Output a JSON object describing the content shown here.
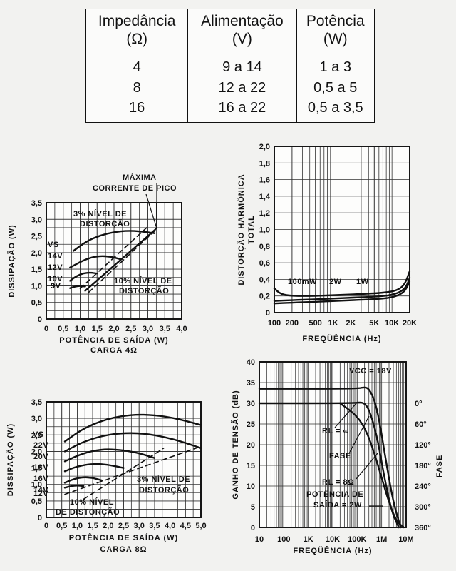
{
  "table": {
    "headers": [
      {
        "line1": "Impedância",
        "line2": "(Ω)"
      },
      {
        "line1": "Alimentação",
        "line2": "(V)"
      },
      {
        "line1": "Potência",
        "line2": "(W)"
      }
    ],
    "rows": [
      [
        "4",
        "9 a 14",
        "1 a 3"
      ],
      [
        "8",
        "12 a 22",
        "0,5 a 5"
      ],
      [
        "16",
        "16 a 22",
        "0,5 a 3,5"
      ]
    ]
  },
  "chart_data": [
    {
      "id": "chart-1",
      "type": "line",
      "ylabel": "DISSIPAÇÃO (W)",
      "xlabel": "POTÊNCIA DE SAÍDA (W)",
      "subtitle": "CARGA 4Ω",
      "xlim": [
        0,
        4.0
      ],
      "ylim": [
        0,
        3.5
      ],
      "xticks": [
        0,
        0.5,
        1,
        1.5,
        2,
        2.5,
        3,
        3.5,
        4
      ],
      "xtick_labels": [
        "0",
        "0,5",
        "1,0",
        "1,5",
        "2,0",
        "2,5",
        "3,0",
        "3,5",
        "4,0"
      ],
      "yticks": [
        0,
        0.5,
        1,
        1.5,
        2,
        2.5,
        3,
        3.5
      ],
      "ytick_labels": [
        "0",
        "0,5",
        "1,0",
        "1,5",
        "2,0",
        "2,5",
        "3,0",
        "3,5"
      ],
      "grid_x_minor": 0.25,
      "grid_y_minor": 0.25,
      "series": [
        {
          "name": "14V",
          "style": "solid",
          "x": [
            0.8,
            1.2,
            1.6,
            2.0,
            2.4,
            2.8,
            3.2
          ],
          "y": [
            2.05,
            2.35,
            2.52,
            2.62,
            2.66,
            2.64,
            2.58
          ]
        },
        {
          "name": "12V",
          "style": "solid",
          "x": [
            0.7,
            1.0,
            1.3,
            1.6,
            1.9,
            2.2
          ],
          "y": [
            1.55,
            1.72,
            1.85,
            1.9,
            1.88,
            1.8
          ]
        },
        {
          "name": "10V",
          "style": "solid",
          "x": [
            0.7,
            0.9,
            1.1,
            1.3,
            1.5
          ],
          "y": [
            1.15,
            1.3,
            1.38,
            1.4,
            1.37
          ]
        },
        {
          "name": "9V",
          "style": "solid",
          "x": [
            0.7,
            0.85,
            1.0,
            1.15
          ],
          "y": [
            0.93,
            0.98,
            1.0,
            0.98
          ]
        },
        {
          "name": "3% nível de distorção",
          "style": "dashed",
          "x": [
            1.0,
            3.0
          ],
          "y": [
            0.92,
            2.78
          ]
        },
        {
          "name": "10% nível de distorção",
          "style": "dashed",
          "x": [
            1.25,
            3.25
          ],
          "y": [
            0.8,
            2.7
          ]
        },
        {
          "name": "máxima corrente de pico",
          "style": "solid",
          "x": [
            1.15,
            3.25
          ],
          "y": [
            0.85,
            2.72
          ]
        }
      ],
      "annotations": [
        "MÁXIMA",
        "CORRENTE DE PICO",
        "3% NÍVEL DE",
        "DISTORÇÃO",
        "10% NÍVEL DE",
        "DISTORÇÃO",
        "VS",
        "14V",
        "12V",
        "10V",
        "9V"
      ]
    },
    {
      "id": "chart-2",
      "type": "line",
      "xscale": "log",
      "ylabel": "DISTORÇÃO HARMÔNICA TOTAL",
      "xlabel": "FREQÜÊNCIA (Hz)",
      "xlim": [
        100,
        20000
      ],
      "ylim": [
        0,
        2.0
      ],
      "xticks": [
        100,
        200,
        500,
        1000,
        2000,
        5000,
        10000,
        20000
      ],
      "xtick_labels": [
        "100",
        "200",
        "500",
        "1K",
        "2K",
        "5K",
        "10K",
        "20K"
      ],
      "yticks": [
        0,
        0.2,
        0.4,
        0.6,
        0.8,
        1.0,
        1.2,
        1.4,
        1.6,
        1.8,
        2.0
      ],
      "ytick_labels": [
        "0",
        "0,2",
        "0,4",
        "0,6",
        "0,8",
        "1,0",
        "1,2",
        "1,4",
        "1,6",
        "1,8",
        "2,0"
      ],
      "series": [
        {
          "name": "100mW",
          "style": "solid",
          "x": [
            100,
            130,
            200,
            500,
            1000,
            5000,
            10000,
            14000,
            17000,
            20000
          ],
          "y": [
            0.29,
            0.22,
            0.2,
            0.2,
            0.21,
            0.23,
            0.25,
            0.29,
            0.36,
            0.5
          ]
        },
        {
          "name": "2W",
          "style": "solid",
          "x": [
            100,
            200,
            500,
            1000,
            5000,
            10000,
            15000,
            18000,
            20000
          ],
          "y": [
            0.11,
            0.12,
            0.13,
            0.14,
            0.16,
            0.18,
            0.23,
            0.3,
            0.38
          ]
        },
        {
          "name": "1W",
          "style": "solid",
          "x": [
            100,
            200,
            500,
            1000,
            5000,
            10000,
            15000,
            18000,
            20000
          ],
          "y": [
            0.14,
            0.15,
            0.16,
            0.17,
            0.19,
            0.21,
            0.26,
            0.33,
            0.42
          ]
        }
      ],
      "annotations": [
        "100mW",
        "2W",
        "1W"
      ]
    },
    {
      "id": "chart-3",
      "type": "line",
      "ylabel": "DISSIPAÇÃO (W)",
      "xlabel": "POTÊNCIA DE SAÍDA (W)",
      "subtitle": "CARGA 8Ω",
      "xlim": [
        0,
        5.0
      ],
      "ylim": [
        0,
        3.5
      ],
      "xticks": [
        0,
        0.5,
        1,
        1.5,
        2,
        2.5,
        3,
        3.5,
        4,
        4.5,
        5
      ],
      "xtick_labels": [
        "0",
        "0,5",
        "1,0",
        "1,5",
        "2,0",
        "2,5",
        "3,0",
        "3,5",
        "4,0",
        "4,5",
        "5,0"
      ],
      "yticks": [
        0,
        0.5,
        1,
        1.5,
        2,
        2.5,
        3,
        3.5
      ],
      "ytick_labels": [
        "0",
        "0,5",
        "1,0",
        "1,5",
        "2,0",
        "2,5",
        "3,0",
        "3,5"
      ],
      "grid_x_minor": 0.25,
      "grid_y_minor": 0.25,
      "series": [
        {
          "name": "22V",
          "style": "solid",
          "x": [
            0.6,
            1.2,
            2.0,
            2.8,
            3.5,
            4.2,
            5.0
          ],
          "y": [
            2.3,
            2.7,
            3.0,
            3.12,
            3.1,
            3.0,
            2.8
          ]
        },
        {
          "name": "20V",
          "style": "solid",
          "x": [
            0.6,
            1.2,
            2.0,
            2.8,
            3.5,
            4.2,
            5.0
          ],
          "y": [
            2.0,
            2.3,
            2.52,
            2.57,
            2.5,
            2.35,
            2.1
          ]
        },
        {
          "name": "18V",
          "style": "solid",
          "x": [
            0.6,
            1.2,
            1.8,
            2.4,
            3.0,
            3.5
          ],
          "y": [
            1.7,
            1.95,
            2.07,
            2.05,
            1.95,
            1.8
          ]
        },
        {
          "name": "16V",
          "style": "solid",
          "x": [
            0.6,
            1.0,
            1.5,
            2.0,
            2.5
          ],
          "y": [
            1.4,
            1.55,
            1.63,
            1.6,
            1.5
          ]
        },
        {
          "name": "14V",
          "style": "solid",
          "x": [
            0.6,
            0.9,
            1.2,
            1.5,
            1.8
          ],
          "y": [
            1.05,
            1.17,
            1.22,
            1.2,
            1.12
          ]
        },
        {
          "name": "12V",
          "style": "solid",
          "x": [
            0.6,
            0.8,
            1.0,
            1.2
          ],
          "y": [
            0.9,
            0.95,
            0.97,
            0.95
          ]
        },
        {
          "name": "3% nível de distorção",
          "style": "dashed",
          "x": [
            0.6,
            5.0
          ],
          "y": [
            0.7,
            2.15
          ]
        },
        {
          "name": "10% nível de distorção",
          "style": "dashed",
          "x": [
            1.2,
            3.8
          ],
          "y": [
            0.55,
            2.1
          ]
        }
      ],
      "annotations": [
        "VS",
        "22V",
        "20V",
        "18V",
        "16V",
        "14V",
        "12V",
        "3% NÍVEL DE",
        "DISTORÇÃO",
        "10% NÍVEL",
        "DE  DISTORÇÃO"
      ]
    },
    {
      "id": "chart-4",
      "type": "line",
      "xscale": "log",
      "ylabel": "GANHO DE TENSÃO (dB)",
      "ylabel_right": "FASE",
      "xlabel": "FREQÜÊNCIA (Hz)",
      "xlim": [
        10,
        10000000
      ],
      "ylim": [
        0,
        40
      ],
      "xticks": [
        10,
        100,
        1000,
        10000,
        100000,
        1000000,
        10000000
      ],
      "xtick_labels": [
        "10",
        "100",
        "1K",
        "10K",
        "100K",
        "1M",
        "10M"
      ],
      "yticks": [
        0,
        5,
        10,
        15,
        20,
        25,
        30,
        35,
        40
      ],
      "ytick_labels": [
        "0",
        "5",
        "10",
        "15",
        "20",
        "25",
        "30",
        "35",
        "40"
      ],
      "right_ticks": [
        {
          "y": 30,
          "label": "0°"
        },
        {
          "y": 25,
          "label": "60°"
        },
        {
          "y": 20,
          "label": "120°"
        },
        {
          "y": 15,
          "label": "180°"
        },
        {
          "y": 10,
          "label": "240°"
        },
        {
          "y": 5,
          "label": "300°"
        },
        {
          "y": 0,
          "label": "360°"
        }
      ],
      "series": [
        {
          "name": "RL = ∞",
          "style": "solid",
          "x": [
            10,
            100000,
            200000,
            300000,
            500000,
            800000,
            1500000,
            3000000,
            6000000
          ],
          "y": [
            33.5,
            33.5,
            33.9,
            33.5,
            31,
            26,
            16,
            6,
            0
          ]
        },
        {
          "name": "RL = 8Ω",
          "style": "solid",
          "x": [
            10,
            80000,
            150000,
            250000,
            400000,
            700000,
            1200000,
            2500000,
            5000000
          ],
          "y": [
            30,
            30,
            30.3,
            29.5,
            26.5,
            21,
            13,
            4,
            0
          ]
        },
        {
          "name": "fase",
          "style": "solid",
          "x": [
            20000,
            100000,
            250000,
            500000,
            1000000,
            2000000,
            4000000,
            8000000
          ],
          "y": [
            30,
            27,
            23,
            18,
            12,
            6,
            1.5,
            0
          ]
        }
      ],
      "annotations": [
        "VCC = 18V",
        "RL = ∞",
        "FASE",
        "RL = 8Ω",
        "POTÊNCIA DE",
        "SAÍDA = 2W"
      ]
    }
  ]
}
